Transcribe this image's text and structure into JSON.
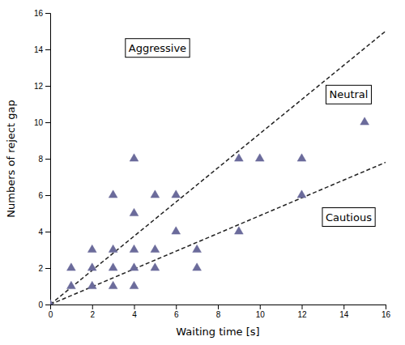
{
  "chart_data": {
    "type": "scatter",
    "xlabel": "Waiting time [s]",
    "ylabel": "Numbers of reject gap",
    "xlim": [
      0,
      16
    ],
    "ylim": [
      0,
      16
    ],
    "xticks": [
      0,
      2,
      4,
      6,
      8,
      10,
      12,
      14,
      16
    ],
    "yticks": [
      0,
      2,
      4,
      6,
      8,
      10,
      12,
      14,
      16
    ],
    "grid": false,
    "series": [
      {
        "type": "scatter",
        "marker": "triangle",
        "color": "#6b6b9b",
        "x": [
          0,
          1,
          1,
          2,
          2,
          2,
          3,
          3,
          3,
          3,
          4,
          4,
          4,
          4,
          4,
          5,
          5,
          5,
          6,
          6,
          7,
          7,
          9,
          9,
          10,
          12,
          12,
          15
        ],
        "values": [
          0,
          1,
          2,
          1,
          2,
          3,
          1,
          2,
          3,
          6,
          1,
          2,
          3,
          5,
          8,
          2,
          3,
          6,
          4,
          6,
          2,
          3,
          4,
          8,
          8,
          6,
          8,
          10
        ]
      },
      {
        "type": "line",
        "line_style": "dashed",
        "color": "#222222",
        "x": [
          0,
          16
        ],
        "values": [
          0,
          15.0
        ]
      },
      {
        "type": "line",
        "line_style": "dashed",
        "color": "#222222",
        "x": [
          0,
          16
        ],
        "values": [
          0,
          7.8
        ]
      }
    ],
    "annotations": [
      "Aggressive",
      "Neutral",
      "Cautious"
    ]
  }
}
